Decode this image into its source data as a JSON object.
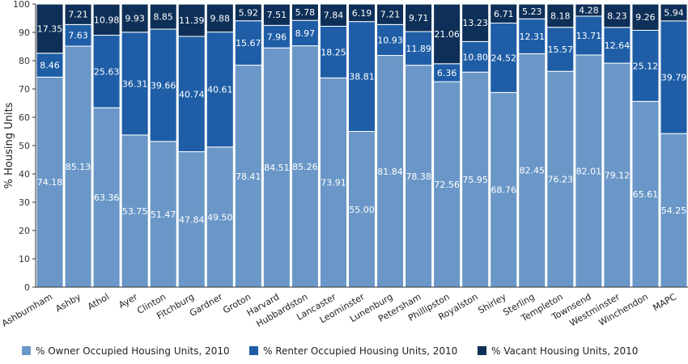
{
  "chart_data": {
    "type": "bar",
    "stacked": true,
    "ylabel": "% Housing Units",
    "ylim": [
      0,
      100
    ],
    "yticks": [
      0,
      10,
      20,
      30,
      40,
      50,
      60,
      70,
      80,
      90,
      100
    ],
    "grid": false,
    "legend_position": "bottom",
    "categories": [
      "Ashburnham",
      "Ashby",
      "Athol",
      "Ayer",
      "Clinton",
      "Fitchburg",
      "Gardner",
      "Groton",
      "Harvard",
      "Hubbardston",
      "Lancaster",
      "Leominster",
      "Lunenburg",
      "Petersham",
      "Phillipston",
      "Royalston",
      "Shirley",
      "Sterling",
      "Templeton",
      "Townsend",
      "Westminster",
      "Winchendon",
      "MAPC"
    ],
    "series": [
      {
        "name": "% Owner Occupied Housing Units, 2010",
        "color": "#6a97c7",
        "values": [
          74.18,
          85.13,
          63.36,
          53.75,
          51.47,
          47.84,
          49.5,
          78.41,
          84.51,
          85.26,
          73.91,
          55.0,
          81.84,
          78.38,
          72.56,
          75.95,
          68.76,
          82.45,
          76.23,
          82.01,
          79.12,
          65.61,
          54.25
        ],
        "labels": [
          "74.18",
          "85.13",
          "63.36",
          "53.75",
          "51.47",
          "47.84",
          "49.50",
          "78.41",
          "84.51",
          "85.26",
          "73.91",
          "55.00",
          "81.84",
          "78.38",
          "72.56",
          "75.95",
          "68.76",
          "82.45",
          "76.23",
          "82.01",
          "79.12",
          "65.61",
          "54.25"
        ]
      },
      {
        "name": "% Renter Occupied Housing Units, 2010",
        "color": "#1f5ea6",
        "values": [
          8.46,
          7.63,
          25.63,
          36.31,
          39.66,
          40.74,
          40.61,
          15.67,
          7.96,
          8.97,
          18.25,
          38.81,
          10.93,
          11.89,
          6.36,
          10.8,
          24.52,
          12.31,
          15.57,
          13.71,
          12.64,
          25.12,
          39.79
        ],
        "labels": [
          "8.46",
          "7.63",
          "25.63",
          "36.31",
          "39.66",
          "40.74",
          "40.61",
          "15.67",
          "7.96",
          "8.97",
          "18.25",
          "38.81",
          "10.93",
          "11.89",
          "6.36",
          "10.80",
          "24.52",
          "12.31",
          "15.57",
          "13.71",
          "12.64",
          "25.12",
          "39.79"
        ]
      },
      {
        "name": "% Vacant Housing Units, 2010",
        "color": "#0e2f57",
        "values": [
          17.35,
          7.21,
          10.98,
          9.93,
          8.85,
          11.39,
          9.88,
          5.92,
          7.51,
          5.78,
          7.84,
          6.19,
          7.21,
          9.71,
          21.06,
          13.23,
          6.71,
          5.23,
          8.18,
          4.28,
          8.23,
          9.26,
          5.94
        ],
        "labels": [
          "17.35",
          "7.21",
          "10.98",
          "9.93",
          "8.85",
          "11.39",
          "9.88",
          "5.92",
          "7.51",
          "5.78",
          "7.84",
          "6.19",
          "7.21",
          "9.71",
          "21.06",
          "13.23",
          "6.71",
          "5.23",
          "8.18",
          "4.28",
          "8.23",
          "9.26",
          "5.94"
        ]
      }
    ]
  }
}
